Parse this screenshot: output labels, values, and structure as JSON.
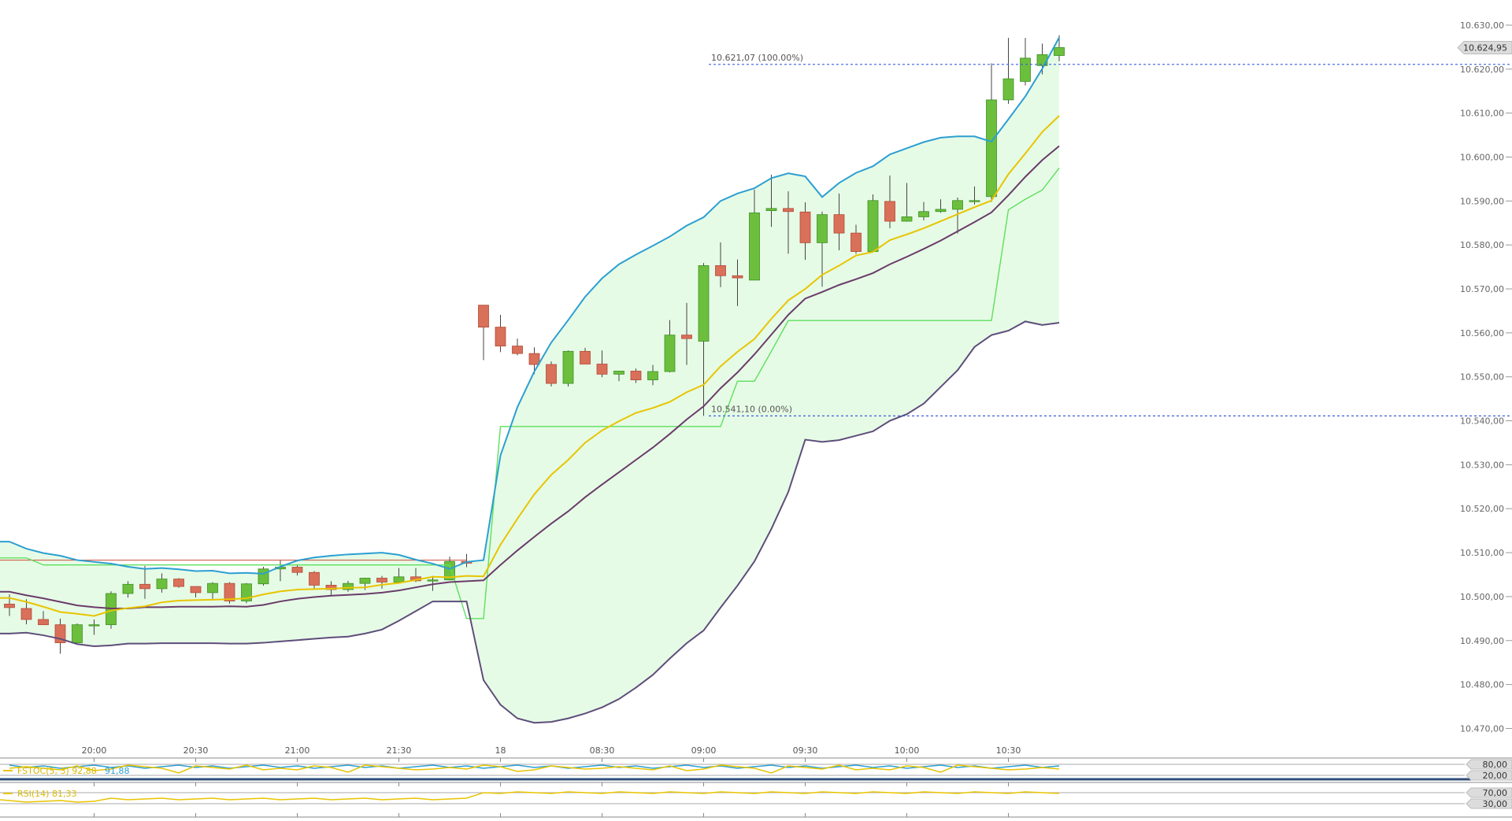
{
  "chart_data": {
    "type": "candlestick",
    "y_tick_labels": [
      "10.470,00",
      "10.480,00",
      "10.490,00",
      "10.500,00",
      "10.510,00",
      "10.520,00",
      "10.530,00",
      "10.540,00",
      "10.550,00",
      "10.560,00",
      "10.570,00",
      "10.580,00",
      "10.590,00",
      "10.600,00",
      "10.610,00",
      "10.620,00",
      "10.630,00"
    ],
    "y_ticks": [
      10470,
      10480,
      10490,
      10500,
      10510,
      10520,
      10530,
      10540,
      10550,
      10560,
      10570,
      10580,
      10590,
      10600,
      10610,
      10620,
      10630
    ],
    "ylim": [
      10466.5,
      10632.5
    ],
    "x_tick_labels": [
      {
        "index": 5,
        "label": "20:00"
      },
      {
        "index": 11,
        "label": "20:30"
      },
      {
        "index": 17,
        "label": "21:00"
      },
      {
        "index": 23,
        "label": "21:30"
      },
      {
        "index": 29,
        "label": "18"
      },
      {
        "index": 35,
        "label": "08:30"
      },
      {
        "index": 41,
        "label": "09:00"
      },
      {
        "index": 47,
        "label": "09:30"
      },
      {
        "index": 53,
        "label": "10:00"
      },
      {
        "index": 59,
        "label": "10:30"
      }
    ],
    "candles": [
      {
        "o": 10498.3,
        "h": 10500.5,
        "l": 10495.6,
        "c": 10497.5
      },
      {
        "o": 10497.3,
        "h": 10499.4,
        "l": 10493.7,
        "c": 10494.8
      },
      {
        "o": 10494.8,
        "h": 10496.7,
        "l": 10493.6,
        "c": 10493.6
      },
      {
        "o": 10493.6,
        "h": 10495.0,
        "l": 10487.0,
        "c": 10489.5
      },
      {
        "o": 10489.5,
        "h": 10493.9,
        "l": 10489.5,
        "c": 10493.6
      },
      {
        "o": 10493.6,
        "h": 10494.8,
        "l": 10491.3,
        "c": 10493.6
      },
      {
        "o": 10493.6,
        "h": 10501.2,
        "l": 10492.7,
        "c": 10500.7
      },
      {
        "o": 10500.7,
        "h": 10503.5,
        "l": 10499.8,
        "c": 10502.8
      },
      {
        "o": 10502.8,
        "h": 10507.0,
        "l": 10499.5,
        "c": 10501.8
      },
      {
        "o": 10501.8,
        "h": 10505.3,
        "l": 10500.9,
        "c": 10504.0
      },
      {
        "o": 10504.0,
        "h": 10504.2,
        "l": 10502.0,
        "c": 10502.3
      },
      {
        "o": 10502.3,
        "h": 10502.3,
        "l": 10499.8,
        "c": 10500.9
      },
      {
        "o": 10500.9,
        "h": 10503.3,
        "l": 10499.5,
        "c": 10503.0
      },
      {
        "o": 10503.0,
        "h": 10503.3,
        "l": 10498.4,
        "c": 10499.0
      },
      {
        "o": 10499.0,
        "h": 10503.1,
        "l": 10498.5,
        "c": 10502.9
      },
      {
        "o": 10502.9,
        "h": 10506.8,
        "l": 10502.5,
        "c": 10506.3
      },
      {
        "o": 10506.3,
        "h": 10508.2,
        "l": 10503.5,
        "c": 10506.7
      },
      {
        "o": 10506.7,
        "h": 10507.2,
        "l": 10504.8,
        "c": 10505.5
      },
      {
        "o": 10505.5,
        "h": 10505.8,
        "l": 10501.7,
        "c": 10502.6
      },
      {
        "o": 10502.6,
        "h": 10503.5,
        "l": 10500.2,
        "c": 10501.6
      },
      {
        "o": 10501.6,
        "h": 10503.6,
        "l": 10501.1,
        "c": 10503.0
      },
      {
        "o": 10503.0,
        "h": 10504.3,
        "l": 10501.5,
        "c": 10504.2
      },
      {
        "o": 10504.2,
        "h": 10504.7,
        "l": 10501.8,
        "c": 10503.3
      },
      {
        "o": 10503.3,
        "h": 10506.5,
        "l": 10503.3,
        "c": 10504.5
      },
      {
        "o": 10504.5,
        "h": 10506.5,
        "l": 10503.3,
        "c": 10503.6
      },
      {
        "o": 10503.6,
        "h": 10504.7,
        "l": 10501.3,
        "c": 10503.8
      },
      {
        "o": 10503.8,
        "h": 10509.1,
        "l": 10503.7,
        "c": 10508.0
      },
      {
        "o": 10508.0,
        "h": 10509.7,
        "l": 10506.7,
        "c": 10507.6
      },
      {
        "o": 10566.3,
        "h": 10566.3,
        "l": 10553.8,
        "c": 10561.3
      },
      {
        "o": 10561.3,
        "h": 10564.1,
        "l": 10555.6,
        "c": 10557.0
      },
      {
        "o": 10557.0,
        "h": 10558.7,
        "l": 10554.9,
        "c": 10555.3
      },
      {
        "o": 10555.3,
        "h": 10556.7,
        "l": 10550.6,
        "c": 10552.8
      },
      {
        "o": 10552.8,
        "h": 10553.5,
        "l": 10547.8,
        "c": 10548.5
      },
      {
        "o": 10548.5,
        "h": 10556.0,
        "l": 10547.8,
        "c": 10555.8
      },
      {
        "o": 10555.8,
        "h": 10556.6,
        "l": 10552.9,
        "c": 10552.9
      },
      {
        "o": 10552.9,
        "h": 10556.0,
        "l": 10549.9,
        "c": 10550.6
      },
      {
        "o": 10550.6,
        "h": 10551.3,
        "l": 10549.0,
        "c": 10551.3
      },
      {
        "o": 10551.3,
        "h": 10551.9,
        "l": 10548.6,
        "c": 10549.3
      },
      {
        "o": 10549.3,
        "h": 10552.7,
        "l": 10548.1,
        "c": 10551.2
      },
      {
        "o": 10551.2,
        "h": 10562.9,
        "l": 10551.0,
        "c": 10559.5
      },
      {
        "o": 10559.5,
        "h": 10566.8,
        "l": 10552.7,
        "c": 10558.7
      },
      {
        "o": 10558.1,
        "h": 10575.9,
        "l": 10541.1,
        "c": 10575.3
      },
      {
        "o": 10575.3,
        "h": 10580.6,
        "l": 10570.4,
        "c": 10573.0
      },
      {
        "o": 10573.0,
        "h": 10576.7,
        "l": 10566.1,
        "c": 10572.5
      },
      {
        "o": 10572.0,
        "h": 10592.6,
        "l": 10572.0,
        "c": 10587.3
      },
      {
        "o": 10587.8,
        "h": 10596.0,
        "l": 10584.1,
        "c": 10588.3
      },
      {
        "o": 10588.3,
        "h": 10592.2,
        "l": 10578.0,
        "c": 10587.6
      },
      {
        "o": 10587.5,
        "h": 10589.7,
        "l": 10576.6,
        "c": 10580.5
      },
      {
        "o": 10580.5,
        "h": 10587.6,
        "l": 10570.5,
        "c": 10586.9
      },
      {
        "o": 10586.9,
        "h": 10591.7,
        "l": 10578.8,
        "c": 10582.7
      },
      {
        "o": 10582.7,
        "h": 10584.6,
        "l": 10578.0,
        "c": 10578.5
      },
      {
        "o": 10578.5,
        "h": 10591.5,
        "l": 10578.4,
        "c": 10590.1
      },
      {
        "o": 10589.9,
        "h": 10595.8,
        "l": 10583.8,
        "c": 10585.4
      },
      {
        "o": 10585.4,
        "h": 10594.1,
        "l": 10585.3,
        "c": 10586.4
      },
      {
        "o": 10586.4,
        "h": 10589.8,
        "l": 10585.6,
        "c": 10587.6
      },
      {
        "o": 10587.6,
        "h": 10590.4,
        "l": 10587.3,
        "c": 10588.1
      },
      {
        "o": 10588.1,
        "h": 10590.8,
        "l": 10582.6,
        "c": 10590.1
      },
      {
        "o": 10590.1,
        "h": 10593.3,
        "l": 10589.2,
        "c": 10590.1
      },
      {
        "o": 10591.0,
        "h": 10621.3,
        "l": 10589.8,
        "c": 10613.0
      },
      {
        "o": 10613.0,
        "h": 10627.1,
        "l": 10612.1,
        "c": 10617.8
      },
      {
        "o": 10617.2,
        "h": 10627.1,
        "l": 10616.3,
        "c": 10622.5
      },
      {
        "o": 10620.8,
        "h": 10625.8,
        "l": 10618.8,
        "c": 10623.3
      },
      {
        "o": 10623.1,
        "h": 10627.7,
        "l": 10621.8,
        "c": 10624.9
      }
    ],
    "bollinger_upper": [
      10512.5,
      10510.9,
      10509.9,
      10509.3,
      10508.3,
      10507.9,
      10507.5,
      10506.8,
      10506.3,
      10506.5,
      10506.2,
      10505.8,
      10505.9,
      10505.3,
      10505.4,
      10505.2,
      10506.8,
      10508.2,
      10508.9,
      10509.3,
      10509.6,
      10509.8,
      10510.0,
      10509.5,
      10508.4,
      10507.5,
      10506.3,
      10507.9,
      10508.3,
      10532.1,
      10543.1,
      10551.2,
      10557.8,
      10562.9,
      10568.2,
      10572.4,
      10575.6,
      10577.8,
      10579.8,
      10581.9,
      10584.4,
      10586.3,
      10590.0,
      10591.7,
      10592.9,
      10595.2,
      10596.3,
      10595.6,
      10590.9,
      10594.1,
      10596.4,
      10597.9,
      10600.6,
      10602.0,
      10603.4,
      10604.4,
      10604.7,
      10604.7,
      10603.5,
      10608.6,
      10613.8,
      10620.1,
      10627.2
    ],
    "bollinger_lower": [
      10491.6,
      10491.8,
      10491.2,
      10490.4,
      10489.2,
      10488.7,
      10488.9,
      10489.3,
      10489.3,
      10489.4,
      10489.4,
      10489.4,
      10489.4,
      10489.3,
      10489.3,
      10489.5,
      10489.8,
      10490.1,
      10490.4,
      10490.7,
      10490.9,
      10491.6,
      10492.5,
      10494.5,
      10496.7,
      10498.9,
      10498.9,
      10498.9,
      10481.0,
      10475.4,
      10472.3,
      10471.3,
      10471.5,
      10472.3,
      10473.4,
      10474.8,
      10476.7,
      10479.3,
      10482.2,
      10485.9,
      10489.4,
      10492.3,
      10497.5,
      10502.5,
      10508.0,
      10515.4,
      10523.8,
      10535.7,
      10535.2,
      10535.6,
      10536.6,
      10537.6,
      10540.0,
      10541.5,
      10543.9,
      10547.7,
      10551.5,
      10556.8,
      10559.5,
      10560.5,
      10562.6,
      10561.8,
      10562.3
    ],
    "sma_yellow": [
      10499.7,
      10498.8,
      10497.7,
      10496.5,
      10496.1,
      10495.6,
      10496.8,
      10497.4,
      10497.8,
      10498.7,
      10499.1,
      10499.2,
      10499.3,
      10499.4,
      10499.6,
      10500.5,
      10501.2,
      10501.6,
      10501.7,
      10501.8,
      10502.0,
      10502.1,
      10502.7,
      10503.1,
      10503.8,
      10504.5,
      10504.4,
      10504.7,
      10504.6,
      10511.8,
      10517.7,
      10523.3,
      10527.7,
      10531.1,
      10535.0,
      10537.8,
      10539.9,
      10541.8,
      10542.9,
      10544.3,
      10546.5,
      10548.2,
      10552.4,
      10555.7,
      10558.6,
      10563.2,
      10567.4,
      10570.0,
      10573.2,
      10575.3,
      10577.6,
      10578.4,
      10581.1,
      10582.4,
      10583.8,
      10585.4,
      10587.0,
      10588.6,
      10590.1,
      10596.1,
      10600.8,
      10605.7,
      10609.4
    ],
    "sma_purple": [
      10501.1,
      10500.3,
      10499.6,
      10498.8,
      10498.0,
      10497.6,
      10497.3,
      10497.3,
      10497.6,
      10497.6,
      10497.7,
      10497.7,
      10497.7,
      10497.8,
      10497.7,
      10498.1,
      10498.9,
      10499.5,
      10499.9,
      10500.2,
      10500.4,
      10500.6,
      10500.9,
      10501.4,
      10502.1,
      10502.8,
      10503.3,
      10503.5,
      10503.7,
      10507.2,
      10510.5,
      10513.6,
      10516.6,
      10519.4,
      10522.6,
      10525.5,
      10528.3,
      10531.1,
      10533.9,
      10537.0,
      10540.3,
      10543.3,
      10547.4,
      10551.0,
      10555.1,
      10559.6,
      10564.1,
      10567.8,
      10569.3,
      10570.9,
      10572.2,
      10573.6,
      10575.6,
      10577.3,
      10579.1,
      10581.0,
      10583.1,
      10585.2,
      10587.4,
      10591.3,
      10595.5,
      10599.3,
      10602.5
    ],
    "donchian_green": [
      10508.8,
      10508.8,
      10507.2,
      10507.2,
      10507.2,
      10507.2,
      10507.2,
      10507.2,
      10507.2,
      10507.2,
      10507.2,
      10507.2,
      10507.2,
      10507.2,
      10507.2,
      10507.2,
      10507.2,
      10507.2,
      10507.2,
      10507.2,
      10507.2,
      10507.2,
      10507.2,
      10507.2,
      10507.2,
      10507.2,
      10507.2,
      10495.0,
      10495.0,
      10538.7,
      10538.7,
      10538.7,
      10538.7,
      10538.7,
      10538.7,
      10538.7,
      10538.7,
      10538.7,
      10538.7,
      10538.7,
      10538.7,
      10538.7,
      10538.7,
      10549.0,
      10549.0,
      10555.8,
      10562.8,
      10562.8,
      10562.8,
      10562.8,
      10562.8,
      10562.8,
      10562.8,
      10562.8,
      10562.8,
      10562.8,
      10562.8,
      10562.8,
      10562.8,
      10588.0,
      10590.4,
      10592.5,
      10597.5
    ],
    "fib_levels": [
      {
        "label": "10.621,07 (100.00%)",
        "value": 10621.07
      },
      {
        "label": "10.541,10 (0.00%)",
        "value": 10541.1
      }
    ],
    "last_price_label": "10.624,95",
    "indicators": {
      "fstoc": {
        "label": "FSTOC(5, 3)",
        "value1": "92,88",
        "value2": "91,88",
        "levels": [
          "80,00",
          "20,00"
        ]
      },
      "rsi": {
        "label": "RSI(14)",
        "value": "81,33",
        "levels": [
          "70,00",
          "30,00"
        ]
      }
    },
    "colors": {
      "up": "#6cbf3c",
      "down": "#d9705a",
      "bollinger_upper": "#2c9fd2",
      "bollinger_lower": "#5e4d7a",
      "band_fill": "#e6fbe6",
      "sma_yellow": "#e8c400",
      "sma_purple": "#6a3c6a",
      "donchian_green": "#5ddf5d",
      "fib_line": "#3b5de0",
      "red_line": "#cc4b37"
    }
  }
}
